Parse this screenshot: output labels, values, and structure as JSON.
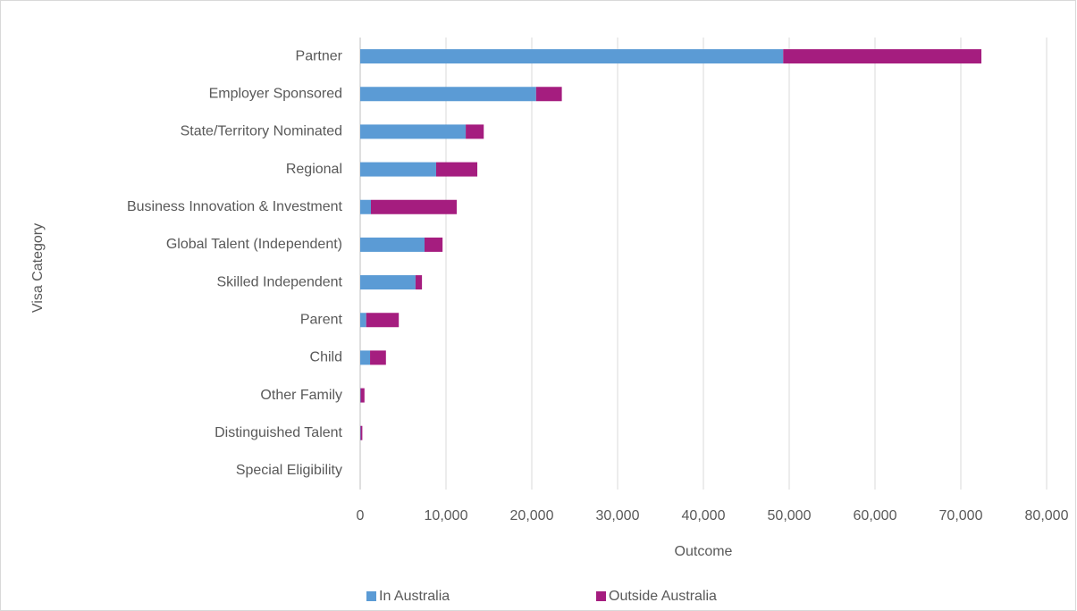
{
  "chart_data": {
    "type": "stacked_barh",
    "y_label": "Visa Category",
    "x_label": "Outcome",
    "categories": [
      "Partner",
      "Employer Sponsored",
      "State/Territory Nominated",
      "Regional",
      "Business Innovation & Investment",
      "Global Talent (Independent)",
      "Skilled Independent",
      "Parent",
      "Child",
      "Other Family",
      "Distinguished Talent",
      "Special Eligibility"
    ],
    "series": [
      {
        "name": "In Australia",
        "color": "#5b9bd5",
        "values": [
          49300,
          20500,
          12300,
          8850,
          1250,
          7500,
          6450,
          700,
          1150,
          50,
          50,
          0
        ]
      },
      {
        "name": "Outside Australia",
        "color": "#a51d7f",
        "values": [
          23100,
          3000,
          2100,
          4800,
          10000,
          2100,
          750,
          3800,
          1850,
          450,
          200,
          0
        ]
      }
    ],
    "xlim": [
      0,
      80000
    ],
    "xticks": [
      0,
      {
        "value": 10000,
        "label": "10,000"
      },
      {
        "value": 20000,
        "label": "20,000"
      },
      {
        "value": 30000,
        "label": "30,000"
      },
      {
        "value": 40000,
        "label": "40,000"
      },
      {
        "value": 50000,
        "label": "50,000"
      },
      {
        "value": 60000,
        "label": "60,000"
      },
      {
        "value": 70000,
        "label": "70,000"
      },
      {
        "value": 80000,
        "label": "80,000"
      }
    ],
    "grid": true,
    "legend": "bottom"
  }
}
